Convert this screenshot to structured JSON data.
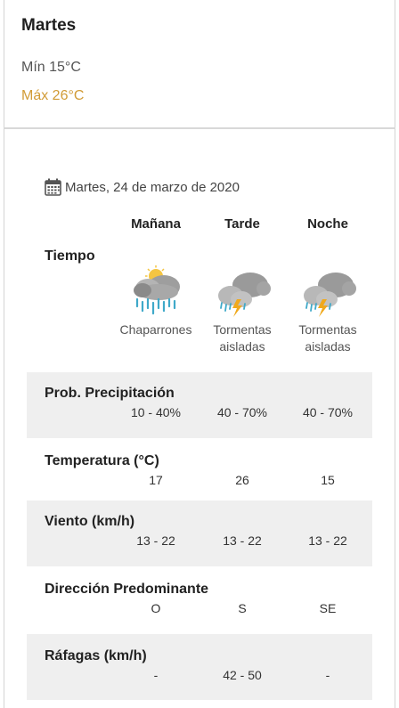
{
  "day": {
    "title": "Martes",
    "min": "Mín 15°C",
    "max": "Máx 26°C"
  },
  "detail": {
    "date": "Martes, 24 de marzo de 2020",
    "periods": [
      "Mañana",
      "Tarde",
      "Noche"
    ],
    "weather_label": "Tiempo",
    "weather": [
      {
        "icon": "showers-icon",
        "desc_line1": "Chaparrones",
        "desc_line2": ""
      },
      {
        "icon": "thunderstorm-icon",
        "desc_line1": "Tormentas",
        "desc_line2": "aisladas"
      },
      {
        "icon": "thunderstorm-icon",
        "desc_line1": "Tormentas",
        "desc_line2": "aisladas"
      }
    ],
    "rows": [
      {
        "label": "Prob. Precipitación",
        "values": [
          "10 - 40%",
          "40 - 70%",
          "40 - 70%"
        ]
      },
      {
        "label": "Temperatura (°C)",
        "values": [
          "17",
          "26",
          "15"
        ]
      },
      {
        "label": "Viento (km/h)",
        "values": [
          "13 - 22",
          "13 - 22",
          "13 - 22"
        ]
      },
      {
        "label": "Dirección Predominante",
        "values": [
          "O",
          "S",
          "SE"
        ]
      },
      {
        "label": "Ráfagas (km/h)",
        "values": [
          "-",
          "42 - 50",
          "-"
        ]
      }
    ]
  },
  "colors": {
    "max_temp": "#d19b36",
    "band_background": "#efefef",
    "rain": "#3fa9c9",
    "lightning": "#f0a91c",
    "cloud": "#9a9a9a",
    "sun": "#f4c542"
  }
}
